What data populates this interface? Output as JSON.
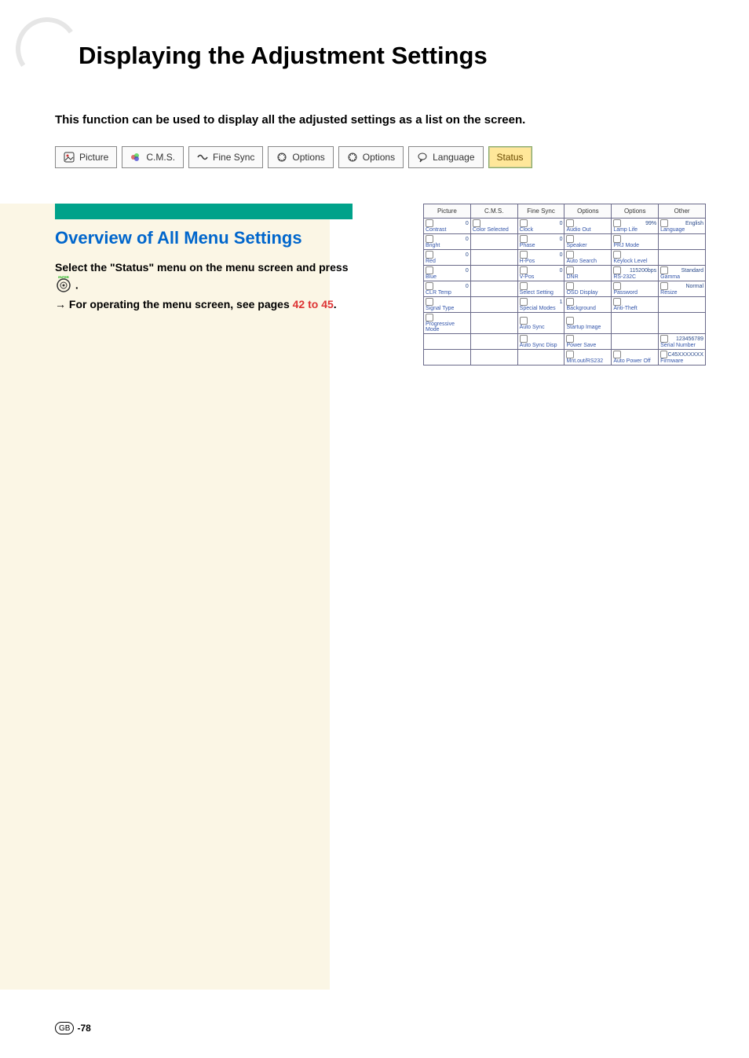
{
  "page": {
    "title": "Displaying the Adjustment Settings",
    "intro": "This function can be used to display all the adjusted settings as a list on the screen.",
    "footer_badge": "GB",
    "footer_page": "-78"
  },
  "tabs": {
    "items": [
      {
        "label": "Picture",
        "icon": "picture-icon"
      },
      {
        "label": "C.M.S.",
        "icon": "cms-icon"
      },
      {
        "label": "Fine Sync",
        "icon": "finesync-icon"
      },
      {
        "label": "Options",
        "icon": "options-icon"
      },
      {
        "label": "Options",
        "icon": "options-icon"
      },
      {
        "label": "Language",
        "icon": "language-icon"
      },
      {
        "label": "Status",
        "icon": "status-icon",
        "active": true
      }
    ]
  },
  "section": {
    "heading": "Overview of All Menu Settings",
    "body_line1": "Select the \"Status\" menu on the menu screen and press ",
    "body_enter_label": "ENTER",
    "body_line1_end": " .",
    "body_line2_prefix": "→ For operating the menu screen, see pages ",
    "body_line2_link": "42 to 45",
    "body_line2_suffix": "."
  },
  "status_grid": {
    "headers": [
      "Picture",
      "C.M.S.",
      "Fine Sync",
      "Options",
      "Options",
      "Other"
    ],
    "rows": [
      [
        {
          "label": "Contrast",
          "val": "0"
        },
        {
          "label": "Color Selected",
          "val": ""
        },
        {
          "label": "Clock",
          "val": "0"
        },
        {
          "label": "Audio Out",
          "val": ""
        },
        {
          "label": "Lamp Life",
          "val": "99%"
        },
        {
          "label": "Language",
          "val": "English"
        }
      ],
      [
        {
          "label": "Bright",
          "val": "0"
        },
        {
          "label": "",
          "val": ""
        },
        {
          "label": "Phase",
          "val": "0"
        },
        {
          "label": "Speaker",
          "val": ""
        },
        {
          "label": "PRJ Mode",
          "val": ""
        },
        {
          "label": "",
          "val": ""
        }
      ],
      [
        {
          "label": "Red",
          "val": "0"
        },
        {
          "label": "",
          "val": ""
        },
        {
          "label": "H-Pos",
          "val": "0"
        },
        {
          "label": "Auto Search",
          "val": ""
        },
        {
          "label": "Keylock Level",
          "val": ""
        },
        {
          "label": "",
          "val": ""
        }
      ],
      [
        {
          "label": "Blue",
          "val": "0"
        },
        {
          "label": "",
          "val": ""
        },
        {
          "label": "V-Pos",
          "val": "0"
        },
        {
          "label": "DNR",
          "val": ""
        },
        {
          "label": "RS-232C",
          "val": "115200bps"
        },
        {
          "label": "Gamma",
          "val": "Standard"
        }
      ],
      [
        {
          "label": "CLR Temp",
          "val": "0"
        },
        {
          "label": "",
          "val": ""
        },
        {
          "label": "Select Setting",
          "val": ""
        },
        {
          "label": "OSD Display",
          "val": ""
        },
        {
          "label": "Password",
          "val": ""
        },
        {
          "label": "Resize",
          "val": "Normal"
        }
      ],
      [
        {
          "label": "Signal Type",
          "val": ""
        },
        {
          "label": "",
          "val": ""
        },
        {
          "label": "Special Modes",
          "val": "1"
        },
        {
          "label": "Background",
          "val": ""
        },
        {
          "label": "Anti-Theft",
          "val": ""
        },
        {
          "label": "",
          "val": ""
        }
      ],
      [
        {
          "label": "Progressive Mode",
          "val": ""
        },
        {
          "label": "",
          "val": ""
        },
        {
          "label": "Auto Sync",
          "val": ""
        },
        {
          "label": "Startup Image",
          "val": ""
        },
        {
          "label": "",
          "val": ""
        },
        {
          "label": "",
          "val": ""
        }
      ],
      [
        {
          "label": "",
          "val": ""
        },
        {
          "label": "",
          "val": ""
        },
        {
          "label": "Auto Sync Disp",
          "val": ""
        },
        {
          "label": "Power Save",
          "val": ""
        },
        {
          "label": "",
          "val": ""
        },
        {
          "label": "Serial Number",
          "val": "123456789"
        }
      ],
      [
        {
          "label": "",
          "val": ""
        },
        {
          "label": "",
          "val": ""
        },
        {
          "label": "",
          "val": ""
        },
        {
          "label": "Mnt.out/RS232",
          "val": ""
        },
        {
          "label": "Auto Power Off",
          "val": ""
        },
        {
          "label": "Firmware",
          "val": "C45XXXXXXX"
        }
      ]
    ]
  },
  "colors": {
    "section_bar": "#00a28a",
    "heading": "#0066cc",
    "link": "#d33",
    "left_bg": "#fbf6e5",
    "tab_active_bg": "#ffe79a"
  }
}
